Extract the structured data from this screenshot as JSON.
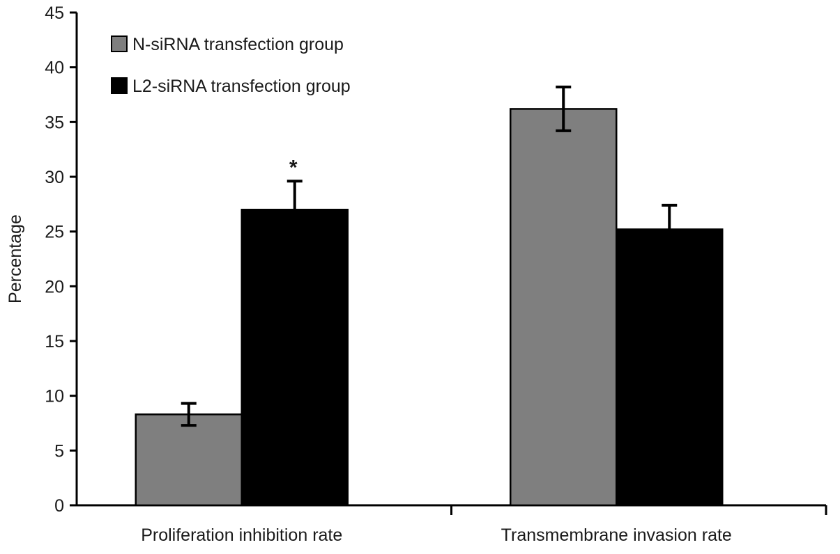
{
  "chart_data": {
    "type": "bar",
    "ylabel": "Percentage",
    "xlabel": "",
    "categories": [
      "Proliferation inhibition rate",
      "Transmembrane invasion rate"
    ],
    "series": [
      {
        "name": "N-siRNA transfection group",
        "color": "#7f7f7f",
        "values": [
          8.3,
          36.2
        ],
        "errors": [
          1.0,
          2.0
        ]
      },
      {
        "name": "L2-siRNA transfection group",
        "color": "#000000",
        "values": [
          27.0,
          25.2
        ],
        "errors": [
          2.6,
          2.2
        ]
      }
    ],
    "annotations": [
      {
        "text": "*",
        "category_index": 0,
        "series_index": 1
      }
    ],
    "ylim": [
      0,
      45
    ],
    "yticks": [
      0,
      5,
      10,
      15,
      20,
      25,
      30,
      35,
      40,
      45
    ],
    "legend_position": "top-left",
    "grid": false
  }
}
